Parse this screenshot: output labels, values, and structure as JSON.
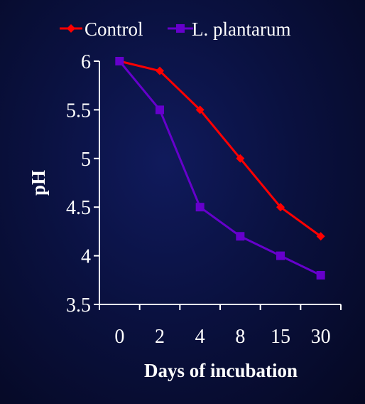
{
  "chart_data": {
    "type": "line",
    "categories": [
      "0",
      "2",
      "4",
      "8",
      "15",
      "30"
    ],
    "xlabel": "Days of incubation",
    "ylabel": "pH",
    "ylim": [
      3.5,
      6
    ],
    "yticks": [
      "3.5",
      "4",
      "4.5",
      "5",
      "5.5",
      "6"
    ],
    "grid": false,
    "legend_position": "top",
    "series": [
      {
        "name": "Control",
        "color": "#ff0000",
        "marker": "diamond",
        "values": [
          6.0,
          5.9,
          5.5,
          5.0,
          4.5,
          4.2
        ]
      },
      {
        "name": "L. plantarum",
        "color": "#6600cc",
        "marker": "square",
        "values": [
          6.0,
          5.5,
          4.5,
          4.2,
          4.0,
          3.8
        ]
      }
    ]
  },
  "colors": {
    "axis": "#ffffff",
    "text": "#ffffff"
  }
}
